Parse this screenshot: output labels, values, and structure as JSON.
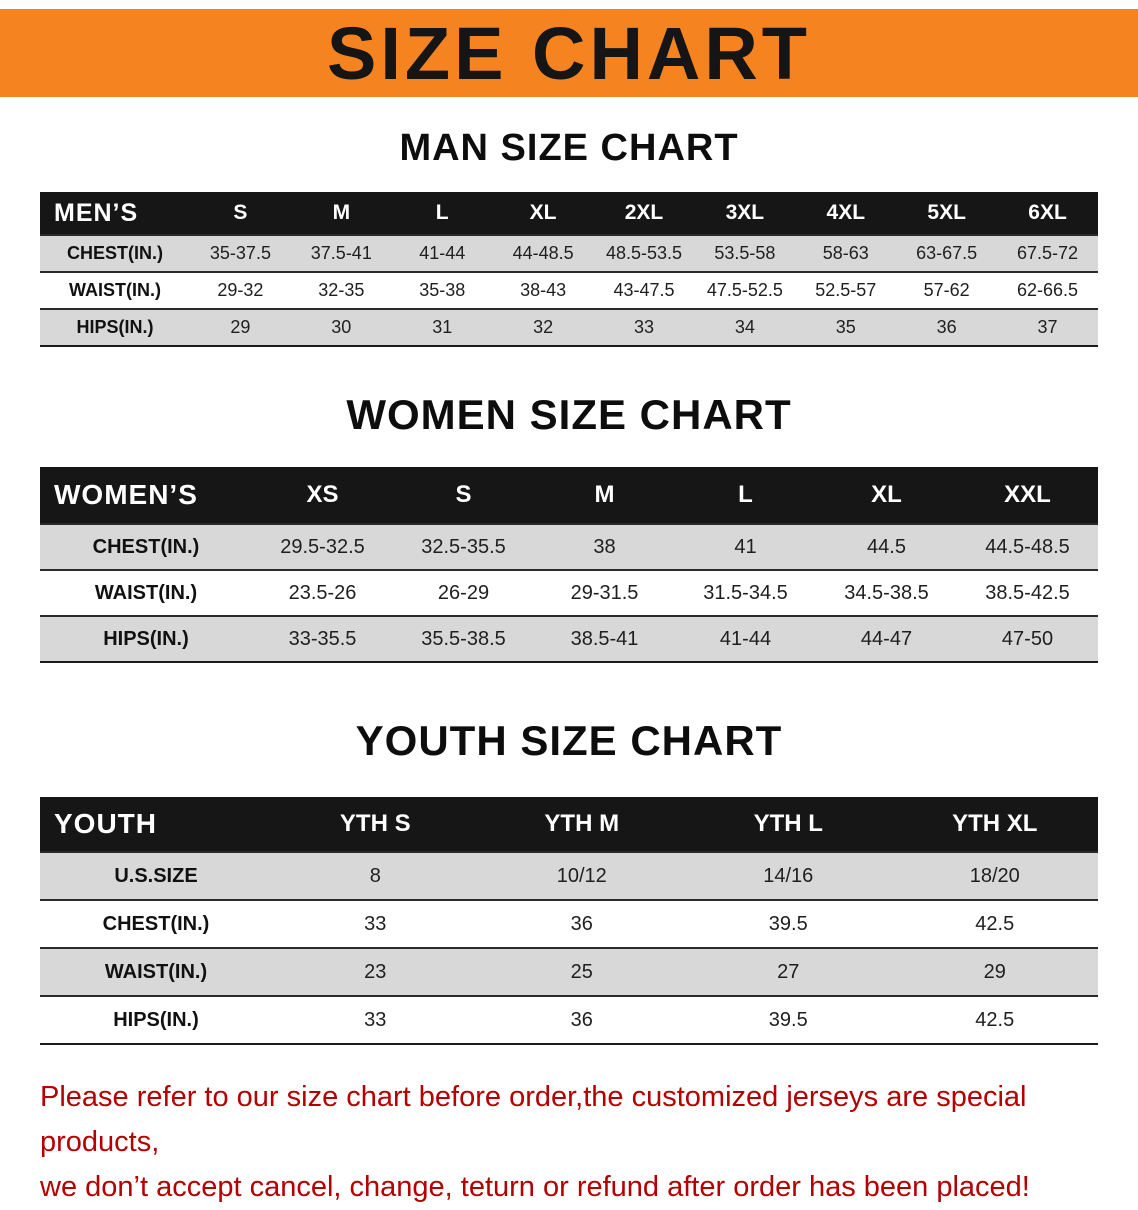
{
  "banner": {
    "title": "SIZE CHART"
  },
  "colors": {
    "banner_bg": "#f5831f",
    "table_header_bg": "#161616",
    "row_alt_bg": "#d8d8d8",
    "footer_text": "#b40000"
  },
  "sections": [
    {
      "heading": "MAN SIZE CHART",
      "table": {
        "corner": "MEN’S",
        "columns": [
          "S",
          "M",
          "L",
          "XL",
          "2XL",
          "3XL",
          "4XL",
          "5XL",
          "6XL"
        ],
        "rows": [
          {
            "label": "CHEST(IN.)",
            "values": [
              "35-37.5",
              "37.5-41",
              "41-44",
              "44-48.5",
              "48.5-53.5",
              "53.5-58",
              "58-63",
              "63-67.5",
              "67.5-72"
            ]
          },
          {
            "label": "WAIST(IN.)",
            "values": [
              "29-32",
              "32-35",
              "35-38",
              "38-43",
              "43-47.5",
              "47.5-52.5",
              "52.5-57",
              "57-62",
              "62-66.5"
            ]
          },
          {
            "label": "HIPS(IN.)",
            "values": [
              "29",
              "30",
              "31",
              "32",
              "33",
              "34",
              "35",
              "36",
              "37"
            ]
          }
        ]
      }
    },
    {
      "heading": "WOMEN SIZE CHART",
      "table": {
        "corner": "WOMEN’S",
        "columns": [
          "XS",
          "S",
          "M",
          "L",
          "XL",
          "XXL"
        ],
        "rows": [
          {
            "label": "CHEST(IN.)",
            "values": [
              "29.5-32.5",
              "32.5-35.5",
              "38",
              "41",
              "44.5",
              "44.5-48.5"
            ]
          },
          {
            "label": "WAIST(IN.)",
            "values": [
              "23.5-26",
              "26-29",
              "29-31.5",
              "31.5-34.5",
              "34.5-38.5",
              "38.5-42.5"
            ]
          },
          {
            "label": "HIPS(IN.)",
            "values": [
              "33-35.5",
              "35.5-38.5",
              "38.5-41",
              "41-44",
              "44-47",
              "47-50"
            ]
          }
        ]
      }
    },
    {
      "heading": "YOUTH SIZE CHART",
      "table": {
        "corner": "YOUTH",
        "columns": [
          "YTH S",
          "YTH M",
          "YTH L",
          "YTH XL"
        ],
        "rows": [
          {
            "label": "U.S.SIZE",
            "values": [
              "8",
              "10/12",
              "14/16",
              "18/20"
            ]
          },
          {
            "label": "CHEST(IN.)",
            "values": [
              "33",
              "36",
              "39.5",
              "42.5"
            ]
          },
          {
            "label": "WAIST(IN.)",
            "values": [
              "23",
              "25",
              "27",
              "29"
            ]
          },
          {
            "label": "HIPS(IN.)",
            "values": [
              "33",
              "36",
              "39.5",
              "42.5"
            ]
          }
        ]
      }
    }
  ],
  "footer": {
    "line1": "Please refer to our size chart before order,the customized jerseys are special products,",
    "line2": "we don’t accept cancel, change, teturn or refund after order has been placed!"
  }
}
